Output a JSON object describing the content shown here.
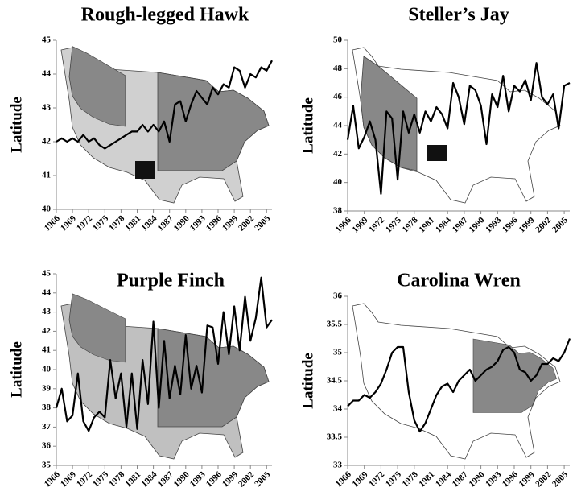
{
  "chart_data": [
    {
      "type": "line",
      "title": "Rough-legged Hawk",
      "y_label": "Latitude",
      "color": "#000000",
      "x": [
        1966,
        1967,
        1968,
        1969,
        1970,
        1971,
        1972,
        1973,
        1974,
        1975,
        1976,
        1977,
        1978,
        1979,
        1980,
        1981,
        1982,
        1983,
        1984,
        1985,
        1986,
        1987,
        1988,
        1989,
        1990,
        1991,
        1992,
        1993,
        1994,
        1995,
        1996,
        1997,
        1998,
        1999,
        2000,
        2001,
        2002,
        2003,
        2004,
        2005,
        2006
      ],
      "values": [
        42.0,
        42.1,
        42.0,
        42.1,
        42.0,
        42.2,
        42.0,
        42.1,
        41.9,
        41.8,
        41.9,
        42.0,
        42.1,
        42.2,
        42.3,
        42.3,
        42.5,
        42.3,
        42.5,
        42.3,
        42.6,
        42.0,
        43.1,
        43.2,
        42.6,
        43.1,
        43.5,
        43.3,
        43.1,
        43.6,
        43.4,
        43.7,
        43.6,
        44.2,
        44.1,
        43.6,
        44.0,
        43.9,
        44.2,
        44.1,
        44.4
      ],
      "xlim": [
        1966,
        2006
      ],
      "xticks": [
        1966,
        1969,
        1972,
        1975,
        1978,
        1981,
        1984,
        1987,
        1990,
        1993,
        1996,
        1999,
        2002,
        2005
      ],
      "ylim": [
        40,
        45
      ],
      "yticks": [
        40,
        41,
        42,
        43,
        44,
        45
      ]
    },
    {
      "type": "line",
      "title": "Steller’s Jay",
      "y_label": "Latitude",
      "color": "#000000",
      "x": [
        1966,
        1967,
        1968,
        1969,
        1970,
        1971,
        1972,
        1973,
        1974,
        1975,
        1976,
        1977,
        1978,
        1979,
        1980,
        1981,
        1982,
        1983,
        1984,
        1985,
        1986,
        1987,
        1988,
        1989,
        1990,
        1991,
        1992,
        1993,
        1994,
        1995,
        1996,
        1997,
        1998,
        1999,
        2000,
        2001,
        2002,
        2003,
        2004,
        2005,
        2006
      ],
      "values": [
        43,
        45.4,
        42.4,
        43.2,
        44.3,
        43,
        39.2,
        45,
        44.5,
        40.2,
        45,
        43.5,
        44.8,
        43.5,
        45,
        44.3,
        45.3,
        44.8,
        43.8,
        47,
        46,
        44.1,
        46.8,
        46.5,
        45.4,
        42.7,
        46.2,
        45.3,
        47.5,
        45,
        46.8,
        46.4,
        47.2,
        45.8,
        48.4,
        46,
        45.5,
        46.2,
        43.8,
        46.8,
        47
      ],
      "xlim": [
        1966,
        2006
      ],
      "xticks": [
        1966,
        1969,
        1972,
        1975,
        1978,
        1981,
        1984,
        1987,
        1990,
        1993,
        1996,
        1999,
        2002,
        2005
      ],
      "ylim": [
        38,
        50
      ],
      "yticks": [
        38,
        40,
        42,
        44,
        46,
        48,
        50
      ]
    },
    {
      "type": "line",
      "title": "Purple Finch",
      "y_label": "Latitude",
      "color": "#000000",
      "x": [
        1966,
        1967,
        1968,
        1969,
        1970,
        1971,
        1972,
        1973,
        1974,
        1975,
        1976,
        1977,
        1978,
        1979,
        1980,
        1981,
        1982,
        1983,
        1984,
        1985,
        1986,
        1987,
        1988,
        1989,
        1990,
        1991,
        1992,
        1993,
        1994,
        1995,
        1996,
        1997,
        1998,
        1999,
        2000,
        2001,
        2002,
        2003,
        2004,
        2005,
        2006
      ],
      "values": [
        38,
        39,
        37.3,
        37.6,
        39.8,
        37.3,
        36.8,
        37.5,
        37.8,
        37.5,
        40.5,
        38.5,
        39.8,
        37,
        39.8,
        36.9,
        40.5,
        38.2,
        42.5,
        38,
        41.5,
        38.5,
        40.2,
        38.7,
        41.8,
        39,
        40.2,
        38.8,
        42.3,
        42.2,
        40.3,
        43,
        40.8,
        43.3,
        41,
        43.8,
        41.5,
        42.7,
        44.8,
        42.2,
        42.6
      ],
      "xlim": [
        1966,
        2006
      ],
      "xticks": [
        1966,
        1969,
        1972,
        1975,
        1978,
        1981,
        1984,
        1987,
        1990,
        1993,
        1996,
        1999,
        2002,
        2005
      ],
      "ylim": [
        35,
        45
      ],
      "yticks": [
        35,
        36,
        37,
        38,
        39,
        40,
        41,
        42,
        43,
        44,
        45
      ]
    },
    {
      "type": "line",
      "title": "Carolina Wren",
      "y_label": "Latitude",
      "color": "#000000",
      "x": [
        1966,
        1967,
        1968,
        1969,
        1970,
        1971,
        1972,
        1973,
        1974,
        1975,
        1976,
        1977,
        1978,
        1979,
        1980,
        1981,
        1982,
        1983,
        1984,
        1985,
        1986,
        1987,
        1988,
        1989,
        1990,
        1991,
        1992,
        1993,
        1994,
        1995,
        1996,
        1997,
        1998,
        1999,
        2000,
        2001,
        2002,
        2003,
        2004,
        2005,
        2006
      ],
      "values": [
        34.05,
        34.15,
        34.15,
        34.25,
        34.2,
        34.3,
        34.45,
        34.7,
        35.0,
        35.1,
        35.1,
        34.3,
        33.8,
        33.6,
        33.75,
        34.0,
        34.25,
        34.4,
        34.45,
        34.3,
        34.5,
        34.6,
        34.7,
        34.5,
        34.6,
        34.7,
        34.75,
        34.85,
        35.05,
        35.1,
        35.0,
        34.7,
        34.65,
        34.5,
        34.6,
        34.8,
        34.8,
        34.9,
        34.85,
        35.0,
        35.25
      ],
      "xlim": [
        1966,
        2006
      ],
      "xticks": [
        1966,
        1969,
        1972,
        1975,
        1978,
        1981,
        1984,
        1987,
        1990,
        1993,
        1996,
        1999,
        2002,
        2005
      ],
      "ylim": [
        33,
        36
      ],
      "yticks": [
        33,
        33.5,
        34,
        34.5,
        35,
        35.5,
        36
      ]
    }
  ]
}
